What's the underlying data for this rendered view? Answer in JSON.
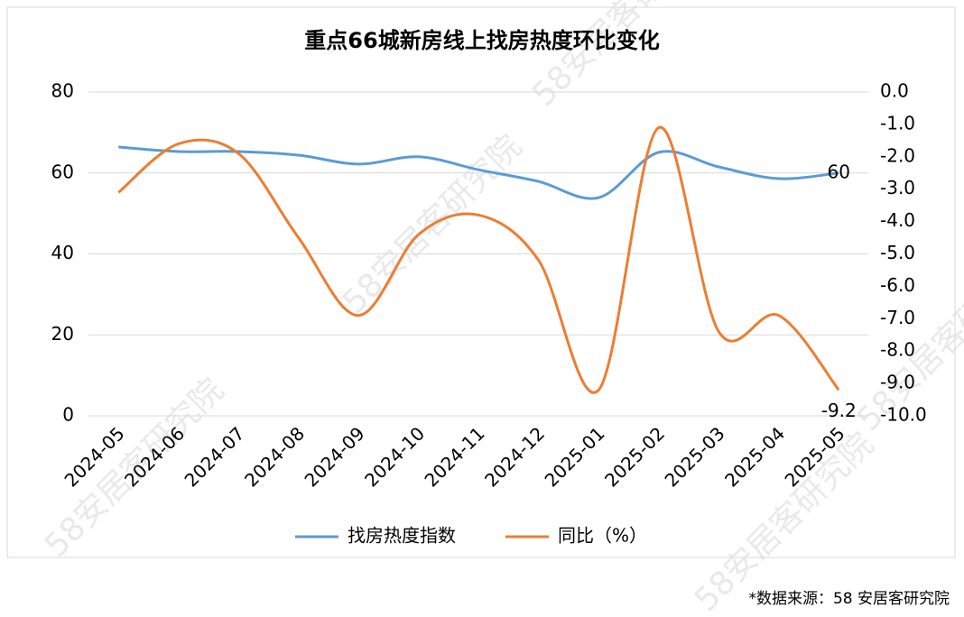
{
  "chart_data": {
    "type": "line",
    "title": "重点66城新房线上找房热度环比变化",
    "categories": [
      "2024-05",
      "2024-06",
      "2024-07",
      "2024-08",
      "2024-09",
      "2024-10",
      "2024-11",
      "2024-12",
      "2025-01",
      "2025-02",
      "2025-03",
      "2025-04",
      "2025-05"
    ],
    "series": [
      {
        "name": "找房热度指数",
        "color": "#5b9bd5",
        "values": [
          66.4,
          65.3,
          65.3,
          64.4,
          62.2,
          64.0,
          60.8,
          57.9,
          53.9,
          65.1,
          61.5,
          58.6,
          60
        ],
        "value_labels": [
          null,
          null,
          null,
          null,
          null,
          null,
          null,
          null,
          null,
          null,
          null,
          null,
          "60"
        ]
      },
      {
        "name": "同比（%）",
        "color": "#ed7d31",
        "axis": "y2",
        "values": [
          -3.1,
          -1.6,
          -1.9,
          -4.5,
          -6.9,
          -4.4,
          -3.8,
          -5.2,
          -9.2,
          -1.1,
          -7.4,
          -6.9,
          -9.2
        ],
        "value_labels": [
          null,
          null,
          null,
          null,
          null,
          null,
          null,
          null,
          null,
          null,
          null,
          null,
          "-9.2"
        ]
      }
    ],
    "ylim": [
      0,
      80
    ],
    "yticks": [
      0,
      20,
      40,
      60,
      80
    ],
    "y2lim": [
      -10,
      0
    ],
    "y2ticks": [
      {
        "value": 0,
        "label": "0.0"
      },
      {
        "value": -1,
        "label": "-1.0"
      },
      {
        "value": -2,
        "label": "-2.0"
      },
      {
        "value": -3,
        "label": "-3.0"
      },
      {
        "value": -4,
        "label": "-4.0"
      },
      {
        "value": -5,
        "label": "-5.0"
      },
      {
        "value": -6,
        "label": "-6.0"
      },
      {
        "value": -7,
        "label": "-7.0"
      },
      {
        "value": -8,
        "label": "-8.0"
      },
      {
        "value": -9,
        "label": "-9.0"
      },
      {
        "value": -10,
        "label": "-10.0"
      }
    ],
    "grid": true,
    "legend": "bottom",
    "watermark": "58安居客研究院",
    "source": "*数据来源：58 安居客研究院"
  }
}
